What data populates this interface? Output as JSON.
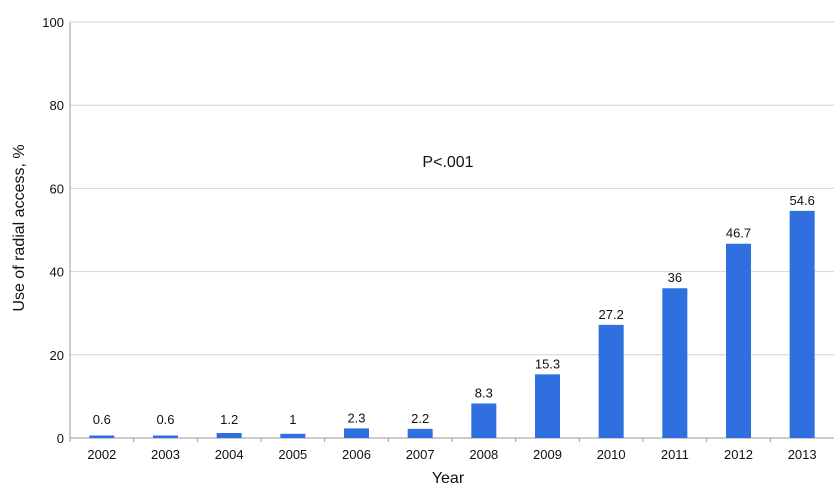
{
  "chart_data": {
    "type": "bar",
    "categories": [
      "2002",
      "2003",
      "2004",
      "2005",
      "2006",
      "2007",
      "2008",
      "2009",
      "2010",
      "2011",
      "2012",
      "2013"
    ],
    "values": [
      0.6,
      0.6,
      1.2,
      1,
      2.3,
      2.2,
      8.3,
      15.3,
      27.2,
      36,
      46.7,
      54.6
    ],
    "data_labels": [
      "0.6",
      "0.6",
      "1.2",
      "1",
      "2.3",
      "2.2",
      "8.3",
      "15.3",
      "27.2",
      "36",
      "46.7",
      "54.6"
    ],
    "xlabel": "Year",
    "ylabel": "Use of radial access, %",
    "ylim": [
      0,
      100
    ],
    "yticks": [
      0,
      20,
      40,
      60,
      80,
      100
    ],
    "annotation": "P<.001",
    "grid": true,
    "colors": {
      "bar": "#2f6fe0",
      "grid": "#d4d4d4",
      "axis": "#999999"
    }
  }
}
